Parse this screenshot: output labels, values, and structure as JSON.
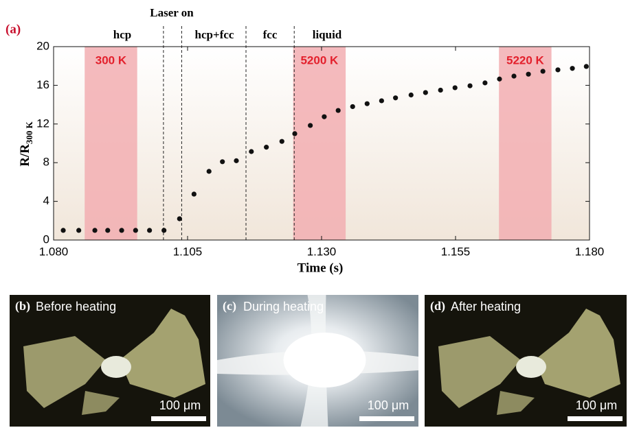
{
  "chart_data": {
    "type": "scatter",
    "panel_label": "(a)",
    "x_label": "Time (s)",
    "y_label": "R/R",
    "y_label_subscript": "300 K",
    "xlim": [
      1.08,
      1.18
    ],
    "xticks": [
      {
        "value": 1.08,
        "label": "1.080"
      },
      {
        "value": 1.105,
        "label": "1.105"
      },
      {
        "value": 1.13,
        "label": "1.130"
      },
      {
        "value": 1.155,
        "label": "1.155"
      },
      {
        "value": 1.18,
        "label": "1.180"
      }
    ],
    "ylim": [
      0,
      20
    ],
    "yticks": [
      0,
      4,
      8,
      12,
      16,
      20
    ],
    "color": "#111111",
    "x": [
      1.0818,
      1.0847,
      1.0877,
      1.0901,
      1.0927,
      1.0953,
      1.0979,
      1.1006,
      1.1035,
      1.1062,
      1.109,
      1.1115,
      1.1141,
      1.1169,
      1.1197,
      1.1226,
      1.125,
      1.1279,
      1.1305,
      1.1331,
      1.1358,
      1.1385,
      1.1412,
      1.1438,
      1.1467,
      1.1494,
      1.1522,
      1.1549,
      1.1577,
      1.1605,
      1.1632,
      1.1659,
      1.1686,
      1.1713,
      1.1741,
      1.1768,
      1.1794
    ],
    "values": [
      1.0,
      1.0,
      1.0,
      1.0,
      1.0,
      1.0,
      1.0,
      1.0,
      2.2,
      4.75,
      7.1,
      8.1,
      8.2,
      9.15,
      9.6,
      10.2,
      11.0,
      11.85,
      12.75,
      13.4,
      13.8,
      14.1,
      14.4,
      14.7,
      15.0,
      15.25,
      15.5,
      15.75,
      15.95,
      16.25,
      16.65,
      16.95,
      17.15,
      17.45,
      17.6,
      17.75,
      17.95
    ],
    "regions": [
      {
        "label": "300 K",
        "x": [
          1.0858,
          1.0956
        ]
      },
      {
        "label": "5200 K",
        "x": [
          1.1247,
          1.1345
        ]
      },
      {
        "label": "5220 K",
        "x": [
          1.1631,
          1.1729
        ]
      }
    ],
    "region_color": "#f2aeb2",
    "markers": [
      1.1005,
      1.1039,
      1.1159,
      1.1249
    ],
    "annotations": [
      "Laser on",
      "hcp",
      "hcp+fcc",
      "fcc",
      "liquid"
    ]
  },
  "photos": [
    {
      "label": "(b)",
      "caption": "Before heating",
      "scale": "100 μm"
    },
    {
      "label": "(c)",
      "caption": "During heating",
      "scale": "100 μm"
    },
    {
      "label": "(d)",
      "caption": "After heating",
      "scale": "100 μm"
    }
  ]
}
